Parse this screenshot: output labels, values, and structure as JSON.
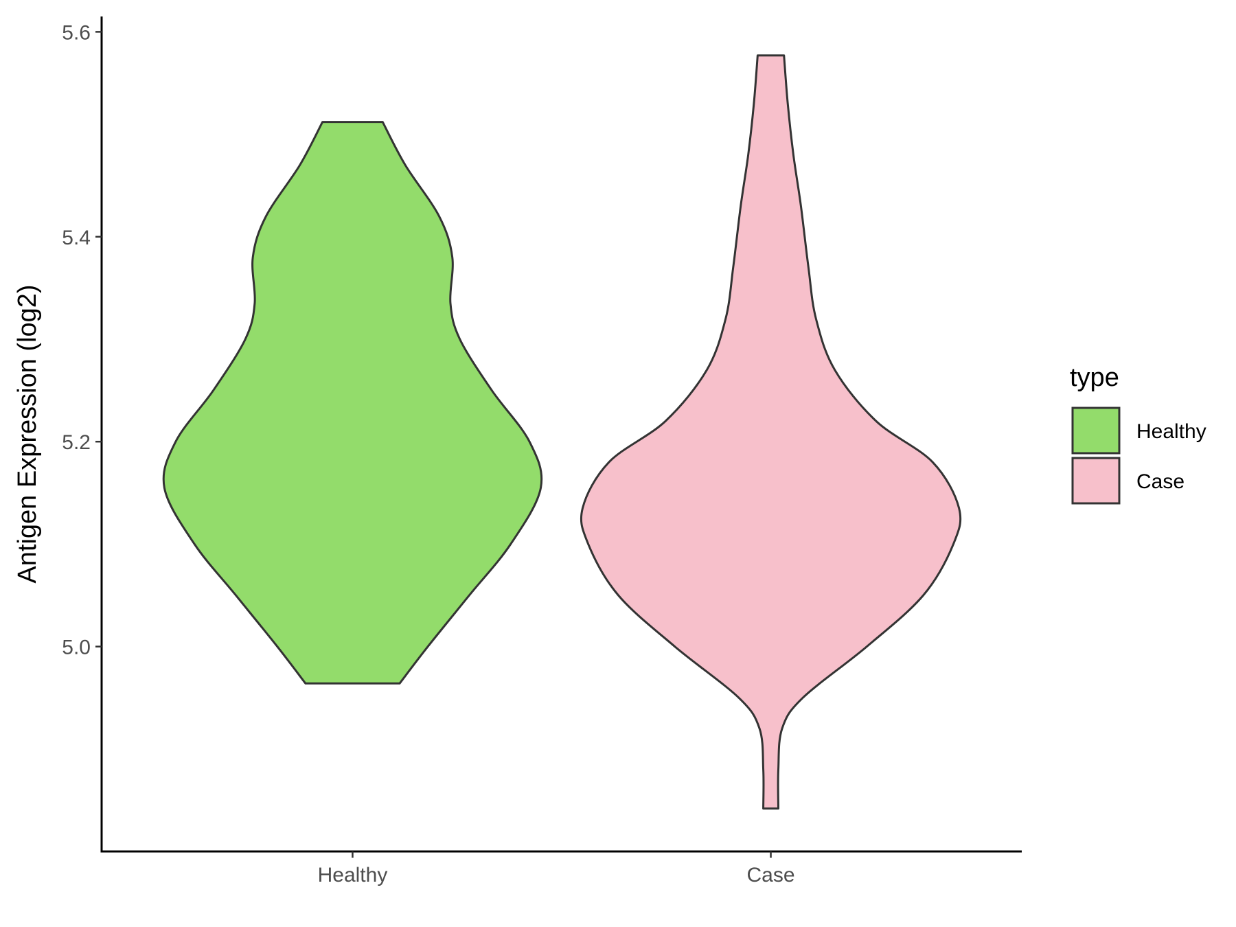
{
  "chart_data": {
    "type": "violin",
    "title": "",
    "xlabel": "",
    "ylabel": "Antigen Expression (log2)",
    "ylim": [
      4.8,
      5.615
    ],
    "y_ticks": [
      5.0,
      5.2,
      5.4,
      5.6
    ],
    "y_tick_labels": [
      "5.0",
      "5.2",
      "5.4",
      "5.6"
    ],
    "categories": [
      "Healthy",
      "Case"
    ],
    "legend": {
      "title": "type",
      "position": "right",
      "entries": [
        {
          "label": "Healthy",
          "color": "#93DC6B"
        },
        {
          "label": "Case",
          "color": "#F7C0CB"
        }
      ]
    },
    "series": [
      {
        "name": "Healthy",
        "color": "#93DC6B",
        "min": 4.964,
        "max": 5.512,
        "density": [
          [
            4.964,
            0.25
          ],
          [
            5.0,
            0.4
          ],
          [
            5.05,
            0.62
          ],
          [
            5.1,
            0.84
          ],
          [
            5.155,
            1.0
          ],
          [
            5.2,
            0.94
          ],
          [
            5.25,
            0.74
          ],
          [
            5.3,
            0.57
          ],
          [
            5.335,
            0.52
          ],
          [
            5.38,
            0.53
          ],
          [
            5.42,
            0.46
          ],
          [
            5.47,
            0.28
          ],
          [
            5.512,
            0.16
          ]
        ]
      },
      {
        "name": "Case",
        "color": "#F7C0CB",
        "min": 4.842,
        "max": 5.577,
        "density": [
          [
            4.842,
            0.04
          ],
          [
            4.88,
            0.04
          ],
          [
            4.92,
            0.06
          ],
          [
            4.95,
            0.17
          ],
          [
            5.0,
            0.51
          ],
          [
            5.05,
            0.81
          ],
          [
            5.1,
            0.97
          ],
          [
            5.135,
            1.0
          ],
          [
            5.18,
            0.86
          ],
          [
            5.22,
            0.56
          ],
          [
            5.27,
            0.34
          ],
          [
            5.32,
            0.24
          ],
          [
            5.37,
            0.2
          ],
          [
            5.43,
            0.16
          ],
          [
            5.48,
            0.12
          ],
          [
            5.53,
            0.09
          ],
          [
            5.577,
            0.07
          ]
        ]
      }
    ]
  }
}
